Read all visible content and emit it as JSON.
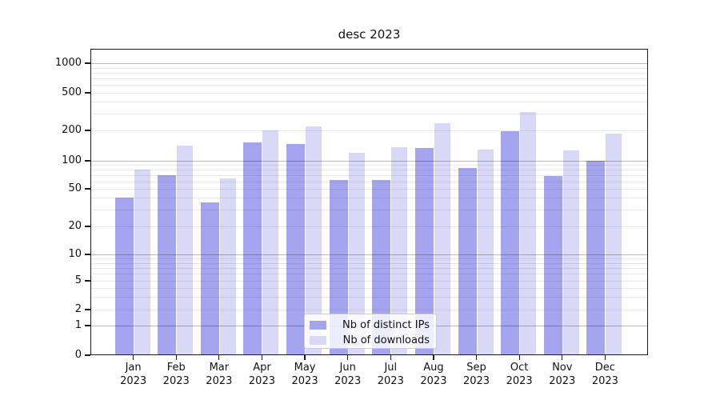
{
  "title": "desc 2023",
  "legend": {
    "items": [
      {
        "label": "Nb of distinct IPs",
        "color": "#a5a5ef"
      },
      {
        "label": "Nb of downloads",
        "color": "#d9d9f7"
      }
    ]
  },
  "colors": {
    "bar_distinct_ips": "#a5a5ef",
    "bar_downloads": "#d9d9f7",
    "grid_major": "rgba(0,0,0,0.28)",
    "grid_minor": "rgba(0,0,0,0.09)",
    "spine": "#1a1a1a",
    "background": "#ffffff"
  },
  "chart_data": {
    "type": "bar",
    "title": "desc 2023",
    "categories": [
      "Jan 2023",
      "Feb 2023",
      "Mar 2023",
      "Apr 2023",
      "May 2023",
      "Jun 2023",
      "Jul 2023",
      "Aug 2023",
      "Sep 2023",
      "Oct 2023",
      "Nov 2023",
      "Dec 2023"
    ],
    "series": [
      {
        "name": "Nb of distinct IPs",
        "color": "#a5a5ef",
        "values": [
          40,
          70,
          36,
          152,
          148,
          62,
          62,
          134,
          84,
          197,
          69,
          100
        ]
      },
      {
        "name": "Nb of downloads",
        "color": "#d9d9f7",
        "values": [
          80,
          142,
          65,
          200,
          220,
          121,
          136,
          240,
          128,
          315,
          127,
          186
        ]
      }
    ],
    "xlabel": "",
    "ylabel": "",
    "y_ticks": [
      0,
      1,
      2,
      5,
      10,
      20,
      50,
      100,
      200,
      500,
      1000
    ],
    "ylim": [
      0,
      1300
    ],
    "yscale": "symlog (log above 1, compressed linear segment between 0 and 1)",
    "grid": "both (major gridlines at powers of 10, light minor gridlines at 2-9 per decade, drawn above bars)",
    "legend_position": "lower center inside plot"
  }
}
